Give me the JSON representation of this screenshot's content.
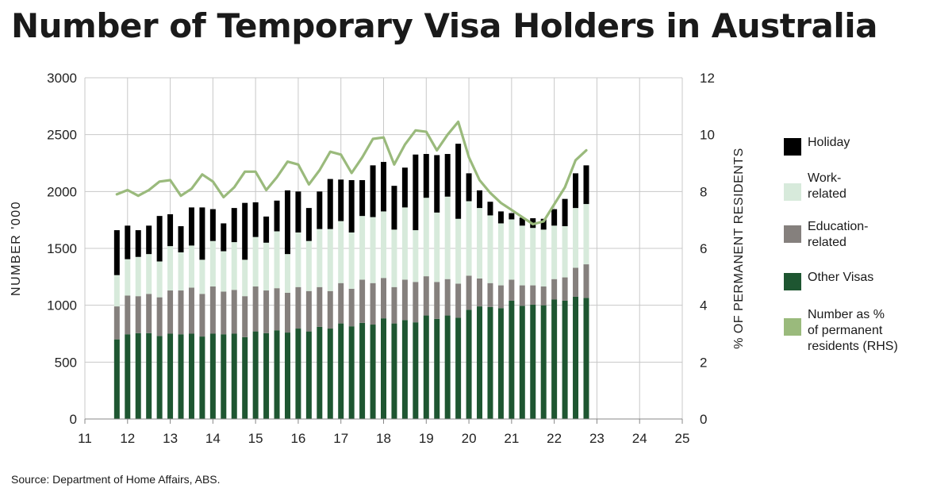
{
  "title": "Number of Temporary Visa Holders in Australia",
  "source": "Source: Department of Home Affairs, ABS.",
  "chart_data": {
    "type": "bar",
    "stacked": true,
    "ylabel": "NUMBER '000",
    "y2label": "% OF PERMANENT RESIDENTS",
    "ylim": [
      0,
      3000
    ],
    "y2lim": [
      0,
      12
    ],
    "yticks": [
      "0",
      "500",
      "1000",
      "1500",
      "2000",
      "2500",
      "3000"
    ],
    "y2ticks": [
      "0",
      "2",
      "4",
      "6",
      "8",
      "10",
      "12"
    ],
    "xlim": [
      2011,
      2025
    ],
    "xticks": [
      "11",
      "12",
      "13",
      "14",
      "15",
      "16",
      "17",
      "18",
      "19",
      "20",
      "21",
      "22",
      "23",
      "24",
      "25"
    ],
    "grid": true,
    "legend_position": "right",
    "x": [
      2011.75,
      2012.0,
      2012.25,
      2012.5,
      2012.75,
      2013.0,
      2013.25,
      2013.5,
      2013.75,
      2014.0,
      2014.25,
      2014.5,
      2014.75,
      2015.0,
      2015.25,
      2015.5,
      2015.75,
      2016.0,
      2016.25,
      2016.5,
      2016.75,
      2017.0,
      2017.25,
      2017.5,
      2017.75,
      2018.0,
      2018.25,
      2018.5,
      2018.75,
      2019.0,
      2019.25,
      2019.5,
      2019.75,
      2020.0,
      2020.25,
      2020.5,
      2020.75,
      2021.0,
      2021.25,
      2021.5,
      2021.75,
      2022.0,
      2022.25,
      2022.5,
      2022.75
    ],
    "series": [
      {
        "name": "Other Visas",
        "color": "#1e5631",
        "kind": "bar",
        "values": [
          700,
          745,
          755,
          755,
          730,
          750,
          745,
          750,
          725,
          750,
          745,
          750,
          720,
          770,
          755,
          780,
          760,
          795,
          770,
          810,
          795,
          840,
          815,
          845,
          830,
          885,
          840,
          870,
          850,
          910,
          880,
          910,
          890,
          960,
          990,
          985,
          975,
          1040,
          995,
          1005,
          1000,
          1050,
          1040,
          1075,
          1065
        ]
      },
      {
        "name": "Education-related",
        "color": "#85807d",
        "kind": "bar",
        "values": [
          290,
          340,
          325,
          345,
          340,
          380,
          385,
          405,
          375,
          415,
          375,
          385,
          360,
          395,
          375,
          370,
          350,
          365,
          355,
          350,
          330,
          355,
          330,
          380,
          365,
          355,
          320,
          355,
          355,
          345,
          325,
          320,
          300,
          300,
          245,
          210,
          200,
          185,
          180,
          170,
          165,
          180,
          205,
          255,
          295
        ]
      },
      {
        "name": "Work-related",
        "color": "#d7eadb",
        "kind": "bar",
        "values": [
          275,
          320,
          345,
          350,
          315,
          390,
          335,
          370,
          300,
          400,
          355,
          420,
          320,
          435,
          420,
          500,
          340,
          480,
          440,
          510,
          545,
          545,
          495,
          560,
          580,
          585,
          505,
          635,
          455,
          690,
          610,
          725,
          570,
          655,
          620,
          595,
          545,
          530,
          525,
          505,
          500,
          470,
          450,
          525,
          530
        ]
      },
      {
        "name": "Holiday",
        "color": "#000000",
        "kind": "bar",
        "values": [
          395,
          295,
          235,
          250,
          400,
          280,
          230,
          335,
          460,
          280,
          245,
          300,
          500,
          305,
          230,
          270,
          560,
          360,
          290,
          330,
          440,
          365,
          460,
          315,
          455,
          435,
          385,
          350,
          665,
          385,
          505,
          375,
          660,
          245,
          155,
          120,
          105,
          55,
          70,
          85,
          95,
          145,
          240,
          305,
          340
        ]
      },
      {
        "name": "Number as % of permanent residents (RHS)",
        "color": "#9aba7c",
        "kind": "line",
        "axis": "right",
        "values": [
          7.9,
          8.05,
          7.85,
          8.05,
          8.35,
          8.4,
          7.85,
          8.1,
          8.6,
          8.35,
          7.8,
          8.15,
          8.7,
          8.7,
          8.05,
          8.5,
          9.05,
          8.95,
          8.25,
          8.75,
          9.4,
          9.3,
          8.65,
          9.2,
          9.85,
          9.9,
          8.95,
          9.65,
          10.15,
          10.1,
          9.45,
          10.0,
          10.45,
          9.2,
          8.4,
          7.95,
          7.6,
          7.35,
          7.1,
          6.85,
          6.95,
          7.55,
          8.15,
          9.1,
          9.45
        ]
      }
    ]
  },
  "legend": [
    {
      "label": "Holiday",
      "color": "#000000"
    },
    {
      "label": "Work-\nrelated",
      "color": "#d7eadb"
    },
    {
      "label": "Education-\nrelated",
      "color": "#85807d"
    },
    {
      "label": "Other Visas",
      "color": "#1e5631"
    },
    {
      "label": "Number as %\nof permanent\nresidents (RHS)",
      "color": "#9aba7c"
    }
  ]
}
